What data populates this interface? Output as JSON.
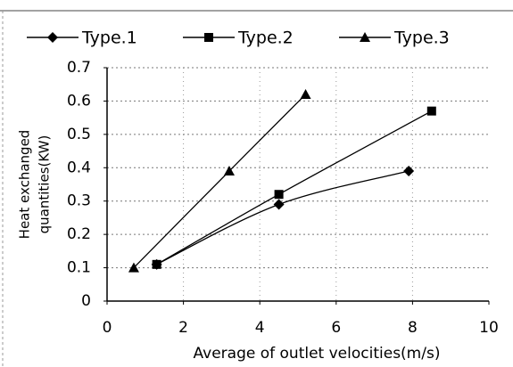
{
  "chart_data": {
    "type": "line",
    "xlabel": "Average of outlet velocities(m/s)",
    "ylabel": [
      "Heat exchanged",
      "quantities(KW)"
    ],
    "series": [
      {
        "name": "Type.1",
        "color": "#000000",
        "marker": "diamond",
        "x": [
          1.3,
          4.5,
          7.9
        ],
        "values": [
          0.11,
          0.29,
          0.39
        ]
      },
      {
        "name": "Type.2",
        "color": "#000000",
        "marker": "square",
        "x": [
          1.3,
          4.5,
          8.5
        ],
        "values": [
          0.11,
          0.32,
          0.57
        ]
      },
      {
        "name": "Type.3",
        "color": "#000000",
        "marker": "triangle",
        "x": [
          0.7,
          3.2,
          5.2
        ],
        "values": [
          0.1,
          0.39,
          0.62
        ]
      }
    ],
    "xlim": [
      0,
      10
    ],
    "xticks": [
      0,
      2,
      4,
      6,
      8,
      10
    ],
    "ylim": [
      0,
      0.7
    ],
    "yticks": [
      0,
      0.1,
      0.2,
      0.3,
      0.4,
      0.5,
      0.6,
      0.7
    ],
    "grid": true,
    "smooth": true,
    "legend": "top"
  }
}
